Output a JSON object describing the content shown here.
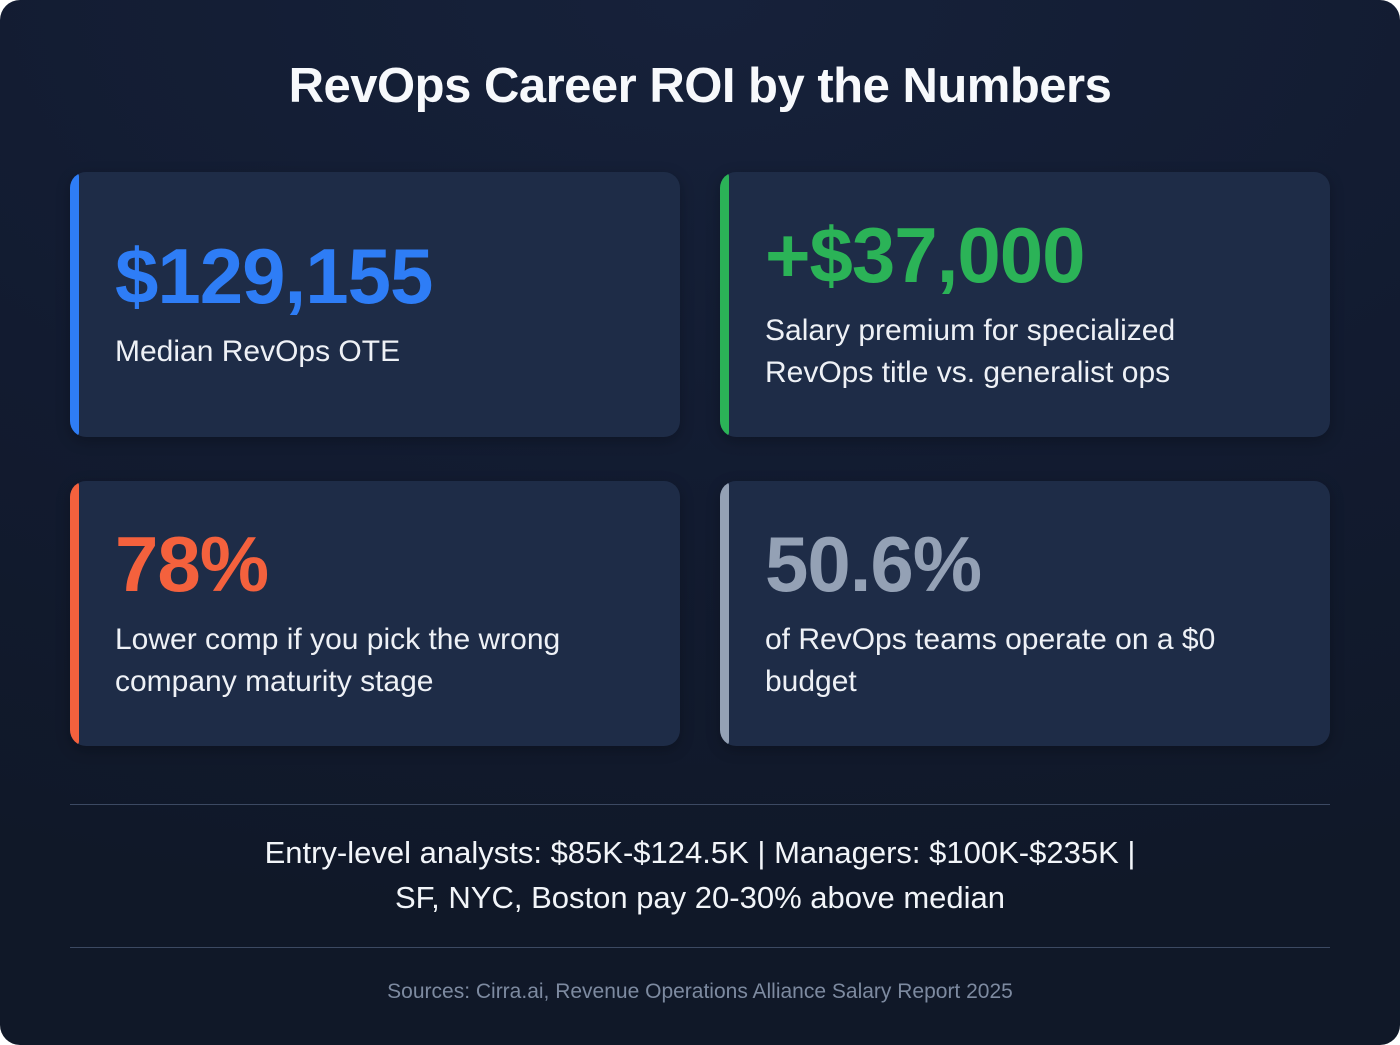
{
  "title": "RevOps Career ROI by the Numbers",
  "cards": [
    {
      "id": "median-ote",
      "value": "$129,155",
      "label": "Median RevOps OTE",
      "color": "#2e7df6"
    },
    {
      "id": "salary-premium",
      "value": "+$37,000",
      "label": "Salary premium for specialized RevOps title vs. generalist ops",
      "color": "#2bb357"
    },
    {
      "id": "comp-risk",
      "value": "78%",
      "label": "Lower comp if you pick the wrong company maturity stage",
      "color": "#f4613d"
    },
    {
      "id": "zero-budget",
      "value": "50.6%",
      "label": "of RevOps teams operate on a $0 budget",
      "color": "#94a1b5"
    }
  ],
  "summary": {
    "line1": "Entry-level analysts: $85K-$124.5K | Managers: $100K-$235K |",
    "line2": "SF, NYC, Boston pay 20-30% above median"
  },
  "footer": "Sources: Cirra.ai, Revenue Operations Alliance Salary Report 2025",
  "colors": {
    "background": "#121b30",
    "card_background": "#1e2c47",
    "divider": "#3c4962",
    "title_text": "#f7f9fc",
    "label_text": "#eef1f6",
    "muted_text": "#7d8aa0",
    "blue": "#2e7df6",
    "green": "#2bb357",
    "orange": "#f4613d",
    "gray": "#94a1b5"
  },
  "chart_data": {
    "type": "table",
    "title": "RevOps Career ROI by the Numbers",
    "stats": [
      {
        "metric": "Median RevOps OTE",
        "display": "$129,155",
        "value": 129155,
        "unit": "USD"
      },
      {
        "metric": "Salary premium for specialized RevOps title vs. generalist ops",
        "display": "+$37,000",
        "value": 37000,
        "unit": "USD"
      },
      {
        "metric": "Lower comp if you pick the wrong company maturity stage",
        "display": "78%",
        "value": 78,
        "unit": "%"
      },
      {
        "metric": "of RevOps teams operate on a $0 budget",
        "display": "50.6%",
        "value": 50.6,
        "unit": "%"
      }
    ],
    "annotations": [
      "Entry-level analysts: $85K-$124.5K",
      "Managers: $100K-$235K",
      "SF, NYC, Boston pay 20-30% above median"
    ],
    "source": "Cirra.ai, Revenue Operations Alliance Salary Report 2025"
  }
}
